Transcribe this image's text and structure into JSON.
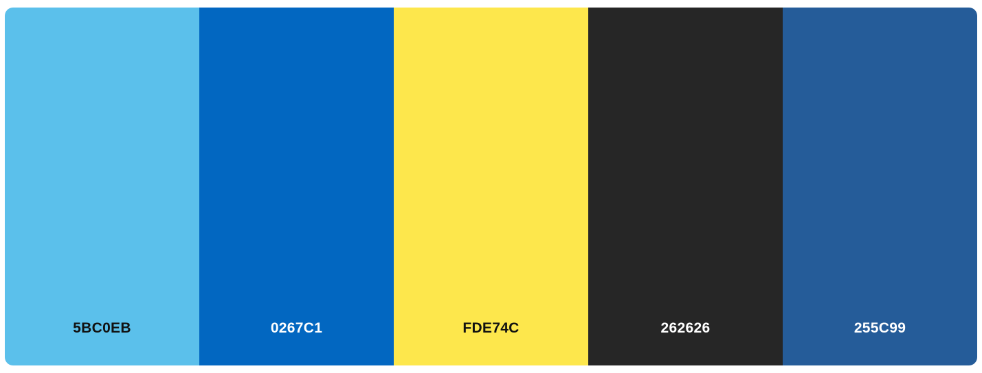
{
  "palette": {
    "swatches": [
      {
        "label": "5BC0EB",
        "color": "#5BC0EB",
        "text_color": "#111111"
      },
      {
        "label": "0267C1",
        "color": "#0267C1",
        "text_color": "#ffffff"
      },
      {
        "label": "FDE74C",
        "color": "#FDE74C",
        "text_color": "#111111"
      },
      {
        "label": "262626",
        "color": "#262626",
        "text_color": "#ffffff"
      },
      {
        "label": "255C99",
        "color": "#255C99",
        "text_color": "#ffffff"
      }
    ]
  }
}
